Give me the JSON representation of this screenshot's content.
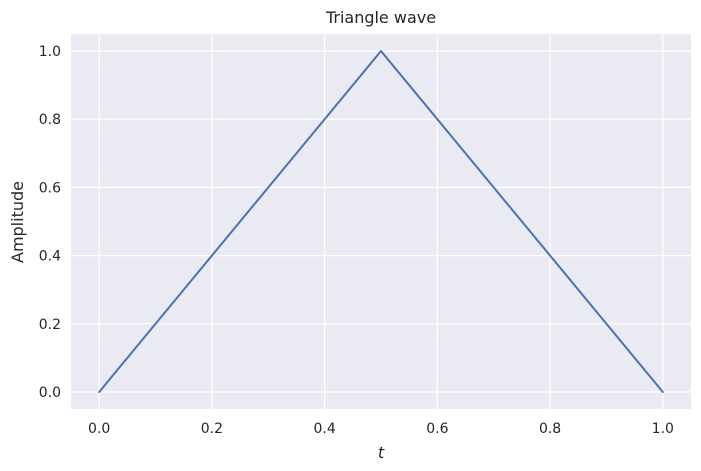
{
  "chart_data": {
    "type": "line",
    "title": "Triangle wave",
    "xlabel": "t",
    "ylabel": "Amplitude",
    "xlim": [
      -0.05,
      1.05
    ],
    "ylim": [
      -0.05,
      1.05
    ],
    "grid": true,
    "xticks": [
      0.0,
      0.2,
      0.4,
      0.6,
      0.8,
      1.0
    ],
    "xtick_labels": [
      "0.0",
      "0.2",
      "0.4",
      "0.6",
      "0.8",
      "1.0"
    ],
    "yticks": [
      0.0,
      0.2,
      0.4,
      0.6,
      0.8,
      1.0
    ],
    "ytick_labels": [
      "0.0",
      "0.2",
      "0.4",
      "0.6",
      "0.8",
      "1.0"
    ],
    "series": [
      {
        "x": [
          0.0,
          0.5,
          1.0
        ],
        "y": [
          0.0,
          1.0,
          0.0
        ],
        "color": "#4c72b0"
      }
    ],
    "colors": {
      "plot_background": "#eaeaf2",
      "grid": "#ffffff",
      "text": "#262626"
    }
  }
}
